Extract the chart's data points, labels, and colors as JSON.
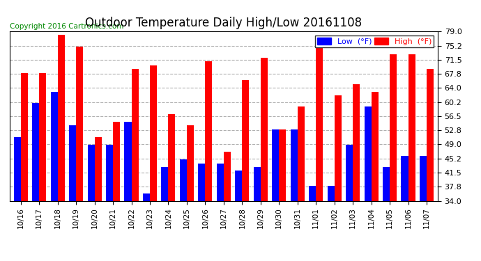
{
  "title": "Outdoor Temperature Daily High/Low 20161108",
  "copyright": "Copyright 2016 Cartronics.com",
  "legend_low": "Low  (°F)",
  "legend_high": "High  (°F)",
  "categories": [
    "10/16",
    "10/17",
    "10/18",
    "10/19",
    "10/20",
    "10/21",
    "10/22",
    "10/23",
    "10/24",
    "10/25",
    "10/26",
    "10/27",
    "10/28",
    "10/29",
    "10/30",
    "10/31",
    "11/01",
    "11/02",
    "11/03",
    "11/04",
    "11/05",
    "11/06",
    "11/07"
  ],
  "low_values": [
    51,
    60,
    63,
    54,
    49,
    49,
    55,
    36,
    43,
    45,
    44,
    44,
    42,
    43,
    53,
    53,
    38,
    38,
    49,
    59,
    43,
    46,
    46
  ],
  "high_values": [
    68,
    68,
    78,
    75,
    51,
    55,
    69,
    70,
    57,
    54,
    71,
    47,
    66,
    72,
    53,
    59,
    77,
    62,
    65,
    63,
    73,
    73,
    69
  ],
  "ylim": [
    34.0,
    79.0
  ],
  "ybase": 34.0,
  "yticks": [
    34.0,
    37.8,
    41.5,
    45.2,
    49.0,
    52.8,
    56.5,
    60.2,
    64.0,
    67.8,
    71.5,
    75.2,
    79.0
  ],
  "low_color": "#0000ff",
  "high_color": "#ff0000",
  "bg_color": "#ffffff",
  "grid_color": "#b0b0b0",
  "title_fontsize": 12,
  "copyright_fontsize": 7.5,
  "bar_width": 0.38
}
